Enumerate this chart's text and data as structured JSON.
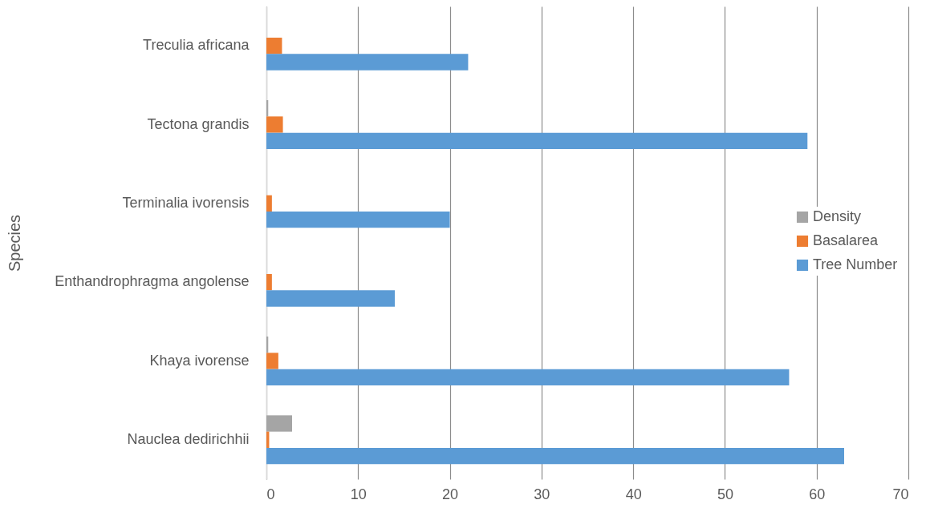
{
  "chart_data": {
    "type": "bar",
    "orientation": "horizontal",
    "ylabel": "Species",
    "categories": [
      "Treculia africana",
      "Tectona grandis",
      "Terminalia ivorensis",
      "Enthandrophragma angolense",
      "Khaya ivorense",
      "Nauclea dedirichhii"
    ],
    "series": [
      {
        "name": "Density",
        "color": "#a5a5a5",
        "values": [
          null,
          0.2,
          null,
          null,
          0.2,
          2.8
        ]
      },
      {
        "name": "Basalarea",
        "color": "#ed7d31",
        "values": [
          1.7,
          1.8,
          0.6,
          0.6,
          1.3,
          0.3
        ]
      },
      {
        "name": "Tree Number",
        "color": "#5b9bd5",
        "values": [
          22,
          59,
          20,
          14,
          57,
          63
        ]
      }
    ],
    "xlim": [
      0,
      70
    ],
    "xticks": [
      0,
      10,
      20,
      30,
      40,
      50,
      60,
      70
    ],
    "grid": "x",
    "legend": "right"
  }
}
